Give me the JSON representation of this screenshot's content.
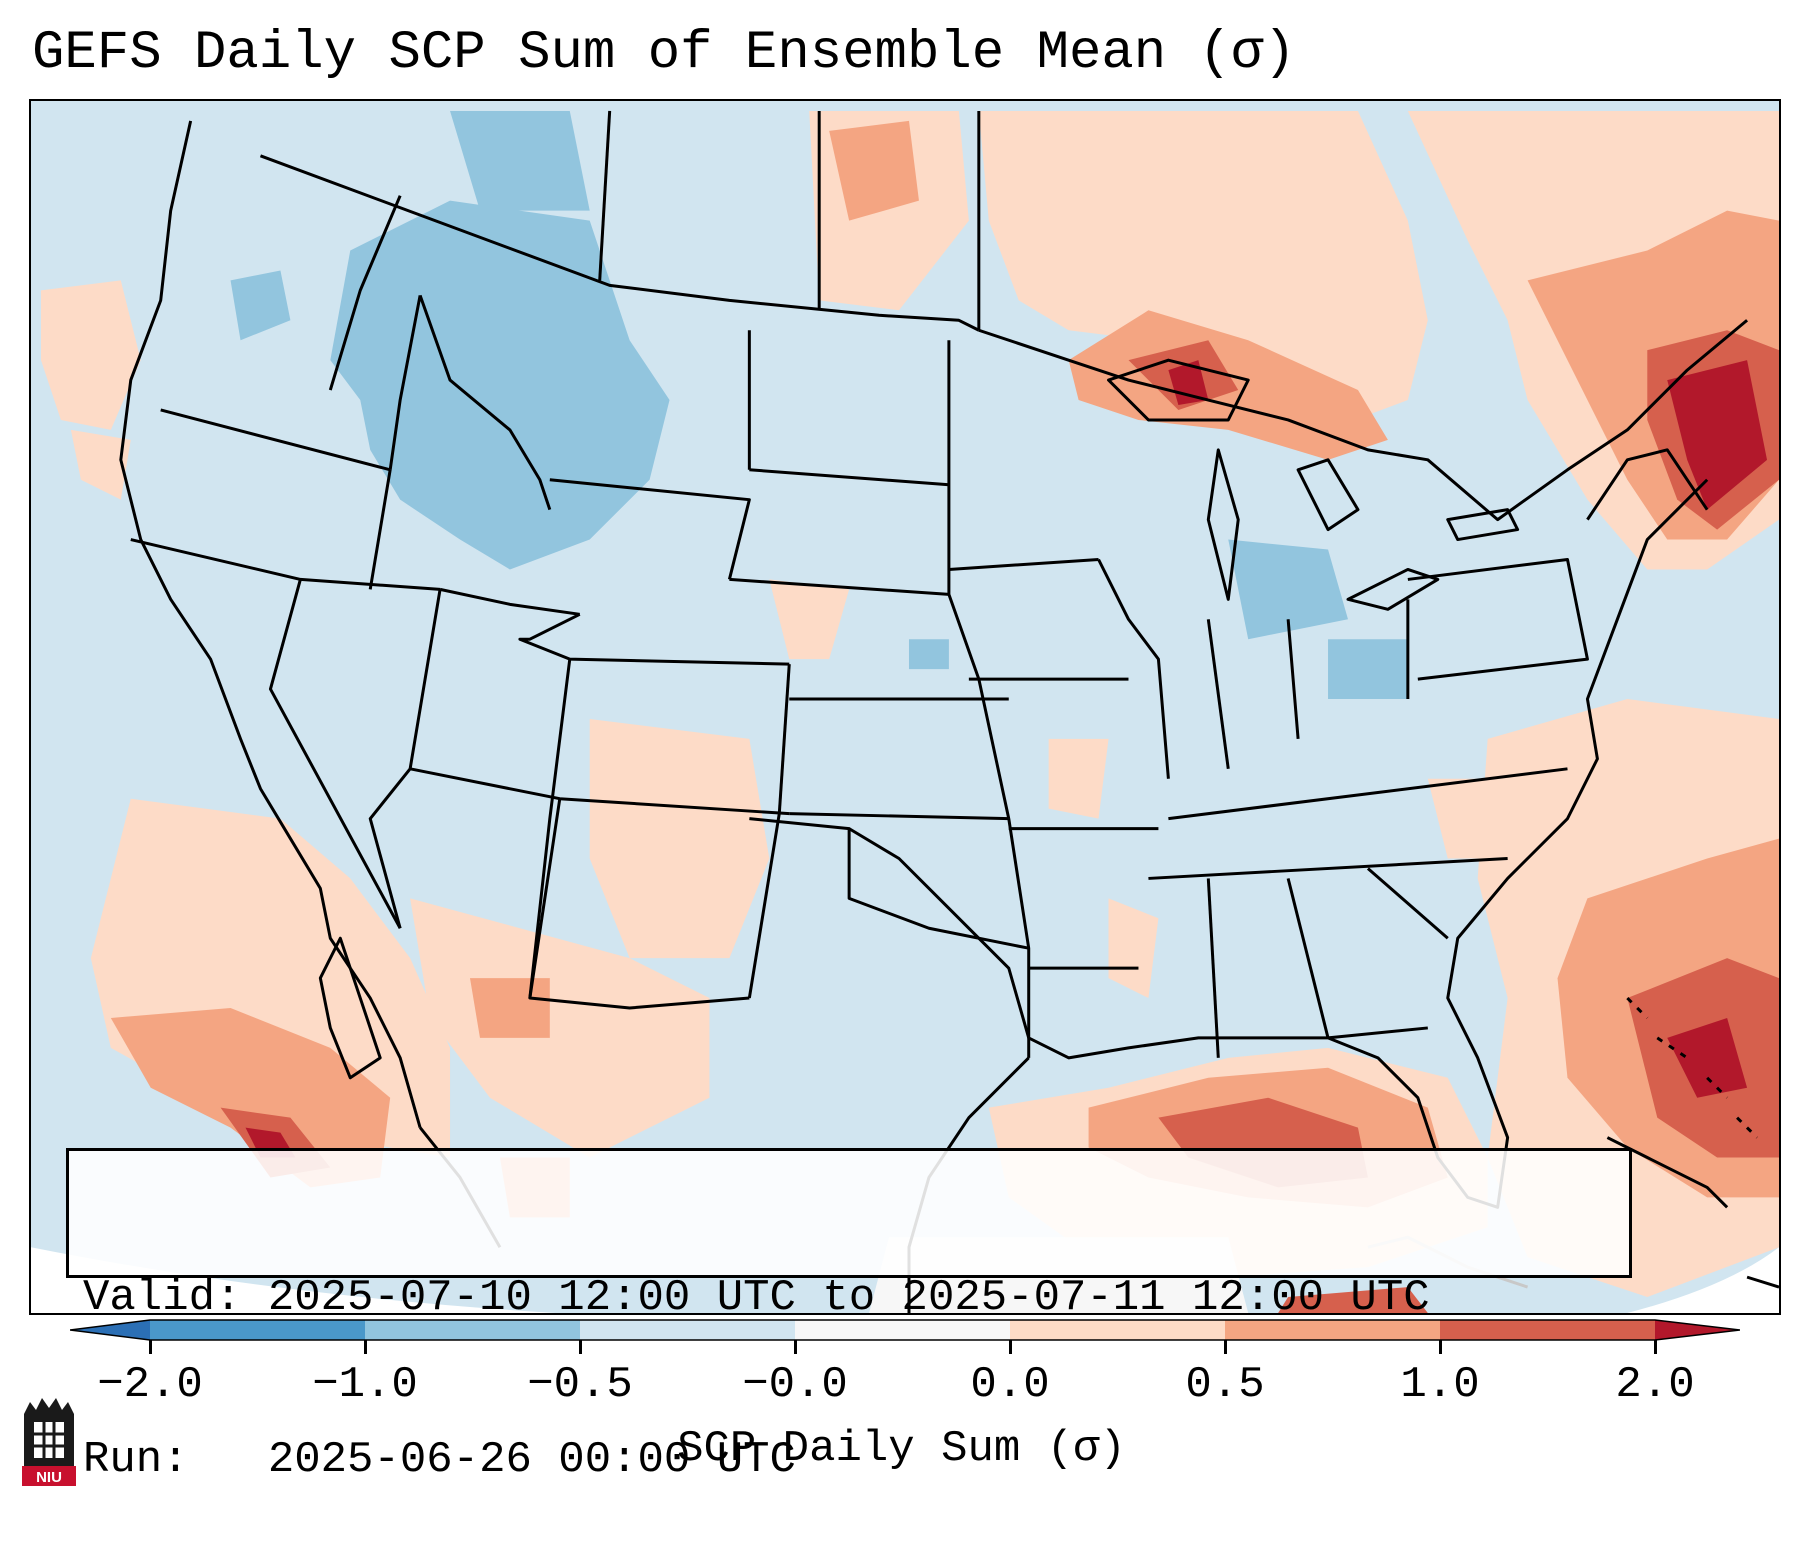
{
  "title": "GEFS Daily SCP Sum of Ensemble Mean (σ)",
  "info": {
    "valid_label": "Valid:",
    "valid_value": "2025-07-10 12:00 UTC to 2025-07-11 12:00 UTC",
    "run_label": "Run:",
    "run_value": "2025-06-26 00:00 UTC"
  },
  "colorbar": {
    "label": "SCP Daily Sum (σ)",
    "ticks": [
      "−2.0",
      "−1.0",
      "−0.5",
      "−0.0",
      "0.0",
      "0.5",
      "1.0",
      "2.0"
    ],
    "colors": {
      "below_min": "#2b6fb5",
      "neg_2_to_1": "#4a98c9",
      "neg_1_to_05": "#92c5de",
      "neg_05_to_0": "#d1e5f0",
      "zero": "#f7f7f7",
      "pos_0_to_05": "#fddbc7",
      "pos_05_to_1": "#f4a582",
      "pos_1_to_2": "#d6604d",
      "above_max": "#b2182b"
    }
  },
  "logo": {
    "text": "NIU"
  },
  "colors": {
    "frame": "#000000",
    "borders": "#000000"
  }
}
